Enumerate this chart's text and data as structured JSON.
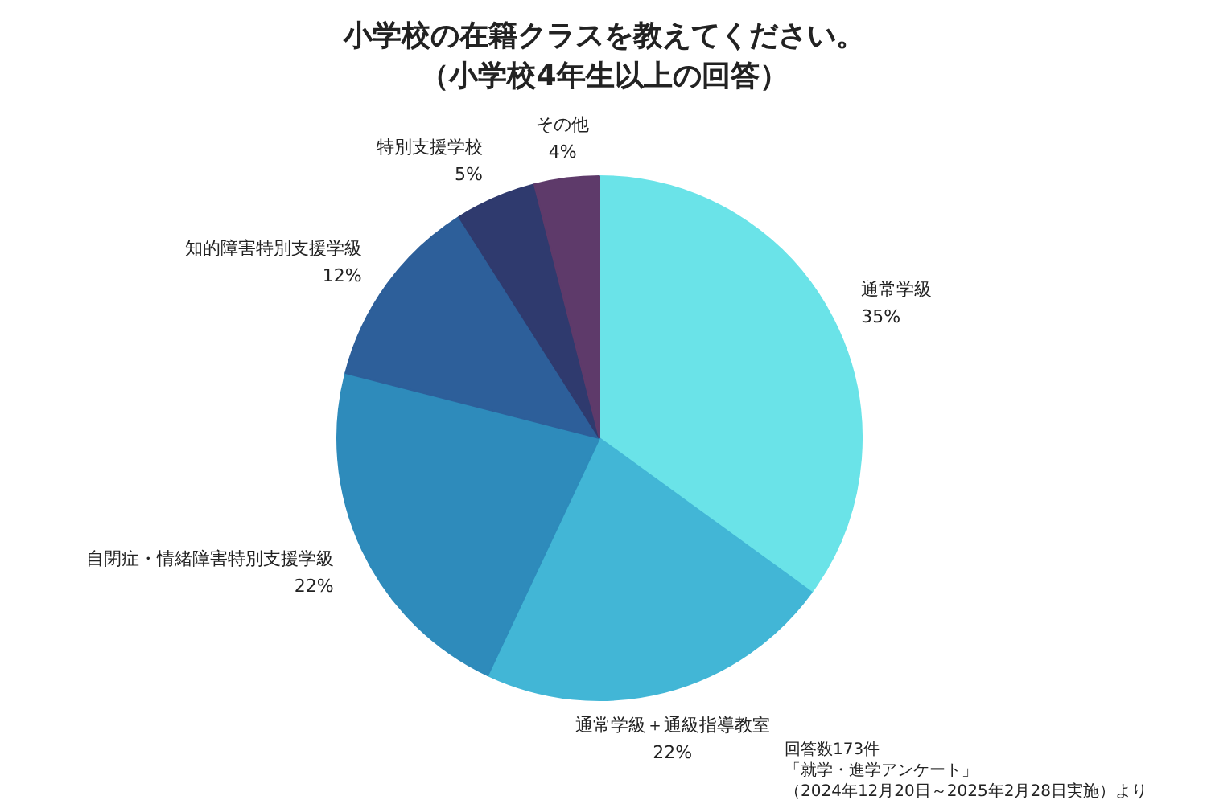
{
  "chart_data": {
    "type": "pie",
    "title": "小学校の在籍クラスを教えてください。",
    "subtitle": "（小学校4年生以上の回答）",
    "categories": [
      "通常学級",
      "通常学級＋通級指導教室",
      "自閉症・情緒障害特別支援学級",
      "知的障害特別支援学級",
      "特別支援学校",
      "その他"
    ],
    "values": [
      35,
      22,
      22,
      12,
      5,
      4
    ],
    "value_labels": [
      "35%",
      "22%",
      "22%",
      "12%",
      "5%",
      "4%"
    ],
    "colors": [
      "#6ae3e8",
      "#42b6d6",
      "#2e8bbb",
      "#2d5f9a",
      "#2f3a6e",
      "#5e3a6a"
    ],
    "annotations": [
      "回答数173件",
      "「就学・進学アンケート」",
      "（2024年12月20日～2025年2月28日実施）より"
    ]
  }
}
